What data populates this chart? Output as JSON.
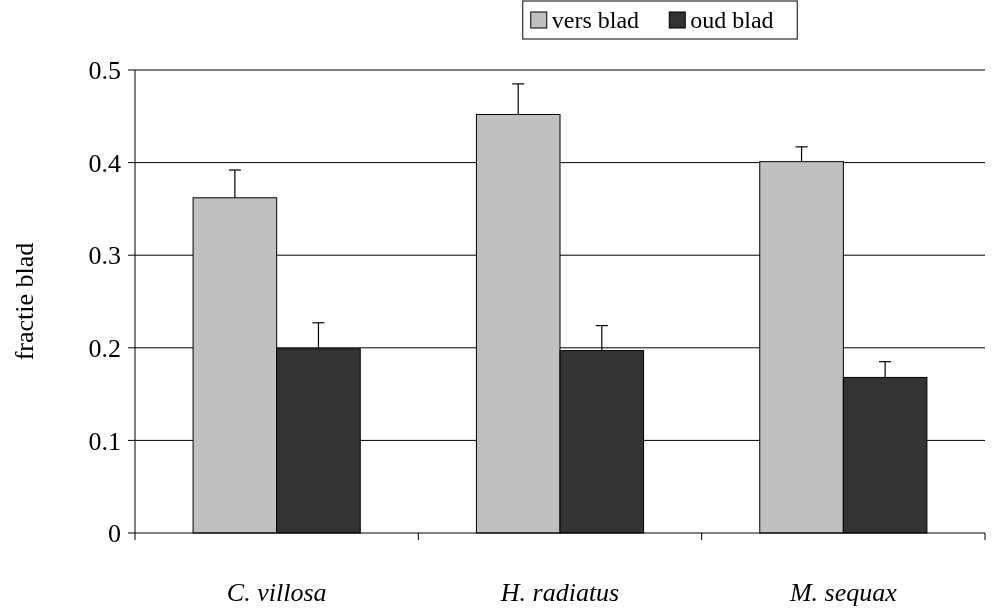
{
  "chart_data": {
    "type": "bar",
    "ylabel": "fractie blad",
    "categories": [
      "C. villosa",
      "H. radiatus",
      "M. sequax"
    ],
    "series": [
      {
        "name": "vers blad",
        "color": "#c0c0c0",
        "values": [
          0.362,
          0.452,
          0.401
        ],
        "errors": [
          0.03,
          0.033,
          0.016
        ]
      },
      {
        "name": "oud blad",
        "color": "#333333",
        "values": [
          0.199,
          0.197,
          0.168
        ],
        "errors": [
          0.028,
          0.027,
          0.017
        ]
      }
    ],
    "ylim": [
      0,
      0.5
    ],
    "yticks": [
      0,
      0.1,
      0.2,
      0.3,
      0.4,
      0.5
    ],
    "grid": "y",
    "legend": "top"
  }
}
